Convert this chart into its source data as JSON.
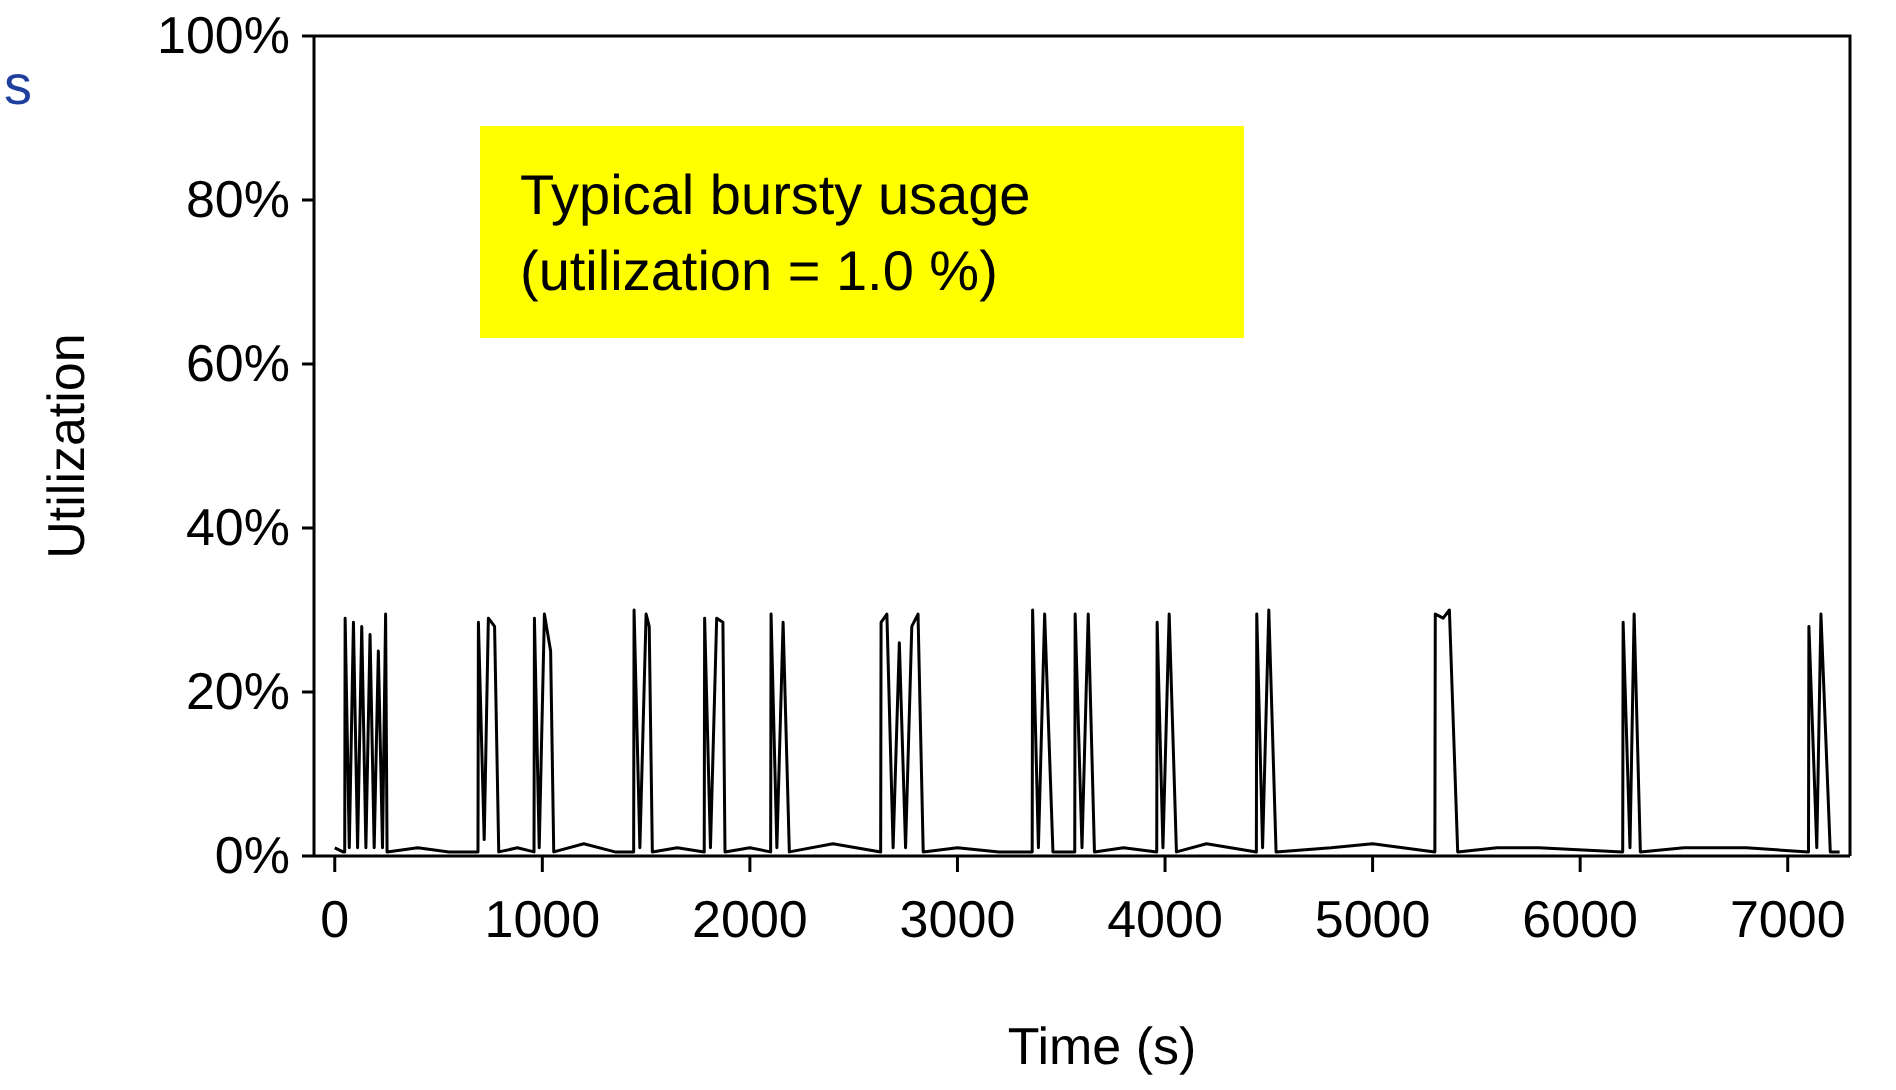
{
  "chart_data": {
    "type": "line",
    "xlabel": "Time (s)",
    "ylabel": "Utilization",
    "annotations": [
      "s",
      "Typical bursty usage\n(utilization = 1.0 %)"
    ],
    "xlim": [
      -100,
      7300
    ],
    "xticks": [
      0,
      1000,
      2000,
      3000,
      4000,
      5000,
      6000,
      7000
    ],
    "ylim": [
      0,
      100
    ],
    "yticks": [
      {
        "value": 0,
        "label": "0%"
      },
      {
        "value": 20,
        "label": "20%"
      },
      {
        "value": 40,
        "label": "40%"
      },
      {
        "value": 60,
        "label": "60%"
      },
      {
        "value": 80,
        "label": "80%"
      },
      {
        "value": 100,
        "label": "100%"
      }
    ],
    "marker": "none",
    "line_style": "solid",
    "series": [
      {
        "color": "#000000",
        "x": [
          0,
          40,
          48,
          50,
          70,
          90,
          110,
          130,
          150,
          170,
          190,
          210,
          230,
          245,
          252,
          400,
          550,
          690,
          692,
          720,
          740,
          770,
          790,
          880,
          960,
          962,
          985,
          1010,
          1040,
          1055,
          1200,
          1350,
          1440,
          1442,
          1470,
          1500,
          1515,
          1530,
          1650,
          1780,
          1782,
          1810,
          1840,
          1870,
          1880,
          2000,
          2100,
          2102,
          2130,
          2160,
          2190,
          2400,
          2630,
          2632,
          2660,
          2690,
          2720,
          2750,
          2780,
          2810,
          2835,
          3000,
          3200,
          3360,
          3362,
          3390,
          3420,
          3460,
          3565,
          3567,
          3600,
          3630,
          3660,
          3800,
          3960,
          3962,
          3990,
          4020,
          4055,
          4200,
          4440,
          4442,
          4470,
          4500,
          4535,
          4800,
          5000,
          5300,
          5302,
          5340,
          5370,
          5410,
          5600,
          5800,
          6205,
          6207,
          6240,
          6260,
          6290,
          6500,
          6800,
          7100,
          7102,
          7140,
          7160,
          7205,
          7250
        ],
        "values": [
          1,
          0.5,
          0.5,
          29,
          1,
          28.5,
          1,
          28,
          1,
          27,
          1,
          25,
          1,
          29.5,
          0.5,
          1,
          0.5,
          0.5,
          28.5,
          2,
          29,
          28,
          0.5,
          1,
          0.5,
          29,
          1,
          29.5,
          25,
          0.5,
          1.5,
          0.5,
          0.5,
          30,
          1,
          29.5,
          28,
          0.5,
          1,
          0.5,
          29,
          1,
          29,
          28.5,
          0.5,
          1,
          0.5,
          29.5,
          1,
          28.5,
          0.5,
          1.5,
          0.5,
          28.5,
          29.5,
          1,
          26,
          1,
          28,
          29.5,
          0.5,
          1,
          0.5,
          0.5,
          30,
          1,
          29.5,
          0.5,
          0.5,
          29.5,
          1,
          29.5,
          0.5,
          1,
          0.5,
          28.5,
          1,
          29.5,
          0.5,
          1.5,
          0.5,
          29.5,
          1,
          30,
          0.5,
          1,
          1.5,
          0.5,
          29.5,
          29,
          30,
          0.5,
          1,
          1,
          0.5,
          28.5,
          1,
          29.5,
          0.5,
          1,
          1,
          0.5,
          28,
          1,
          29.5,
          0.5,
          0.5
        ]
      }
    ]
  }
}
